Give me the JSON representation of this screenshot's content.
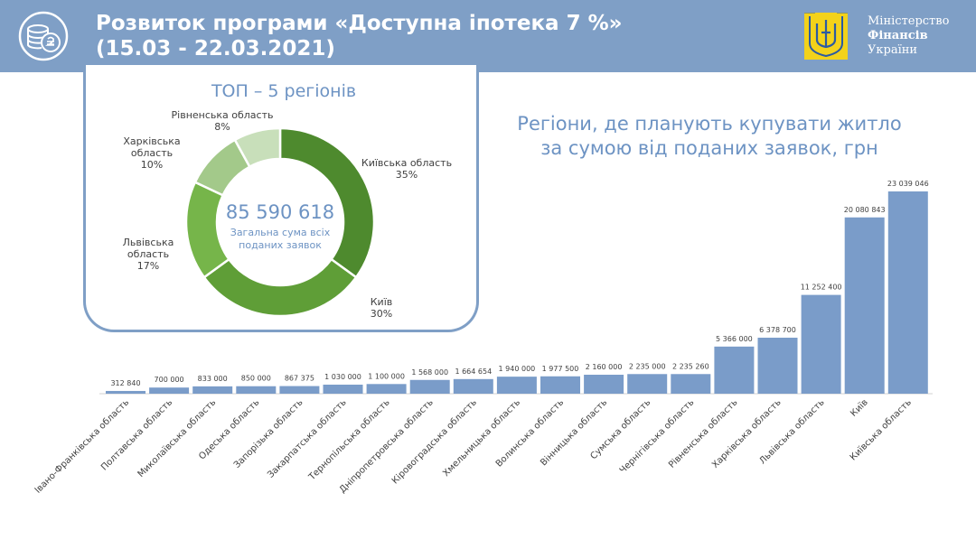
{
  "header": {
    "title_line1": "Розвиток програми «Доступна іпотека 7 %»",
    "title_line2": "(15.03 - 22.03.2021)",
    "ministry": {
      "line1": "Міністерство",
      "line2": "Фінансів",
      "line3": "України"
    }
  },
  "donut": {
    "title": "ТОП – 5 регіонів",
    "center_value": "85 590 618",
    "center_caption_1": "Загальна  сума всіх",
    "center_caption_2": "поданих заявок"
  },
  "bar_title_1": "Регіони, де планують купувати житло",
  "bar_title_2": "за сумою від поданих заявок, грн",
  "colors": {
    "header": "#7f9fc6",
    "bar": "#7a9cc9",
    "accent_text": "#6d93c3"
  },
  "chart_data": [
    {
      "type": "pie",
      "title": "ТОП – 5 регіонів",
      "slices": [
        {
          "label": "Київська область",
          "value": 35,
          "display": "35%",
          "color": "#4e8a2e"
        },
        {
          "label": "Київ",
          "value": 30,
          "display": "30%",
          "color": "#5f9e37"
        },
        {
          "label": "Львівська область",
          "value": 17,
          "display": "17%",
          "color": "#76b54a"
        },
        {
          "label": "Харківська область",
          "value": 10,
          "display": "10%",
          "color": "#a3c98a"
        },
        {
          "label": "Рівненська область",
          "value": 8,
          "display": "8%",
          "color": "#c8dfba"
        }
      ]
    },
    {
      "type": "bar",
      "title": "Регіони, де планують купувати житло за сумою від поданих заявок, грн",
      "categories": [
        "Івано-Франківська область",
        "Полтавська область",
        "Миколаївська область",
        "Одеська область",
        "Запорізька область",
        "Закарпатська область",
        "Тернопільська область",
        "Дніпропетровська область",
        "Кіровоградська область",
        "Хмельницька область",
        "Волинська область",
        "Вінницька область",
        "Сумська область",
        "Чернігівська область",
        "Рівненська область",
        "Харківська область",
        "Львівська область",
        "Київ",
        "Київська область"
      ],
      "values": [
        312840,
        700000,
        833000,
        850000,
        867375,
        1030000,
        1100000,
        1568000,
        1664654,
        1940000,
        1977500,
        2160000,
        2235000,
        2235260,
        5366000,
        6378700,
        11252400,
        20080843,
        23039046
      ],
      "value_labels": [
        "312 840",
        "700 000",
        "833 000",
        "850 000",
        "867 375",
        "1 030 000",
        "1 100 000",
        "1 568 000",
        "1 664 654",
        "1 940 000",
        "1 977 500",
        "2 160 000",
        "2 235 000",
        "2 235 260",
        "5 366 000",
        "6 378 700",
        "11 252 400",
        "20 080 843",
        "23 039 046"
      ]
    }
  ]
}
